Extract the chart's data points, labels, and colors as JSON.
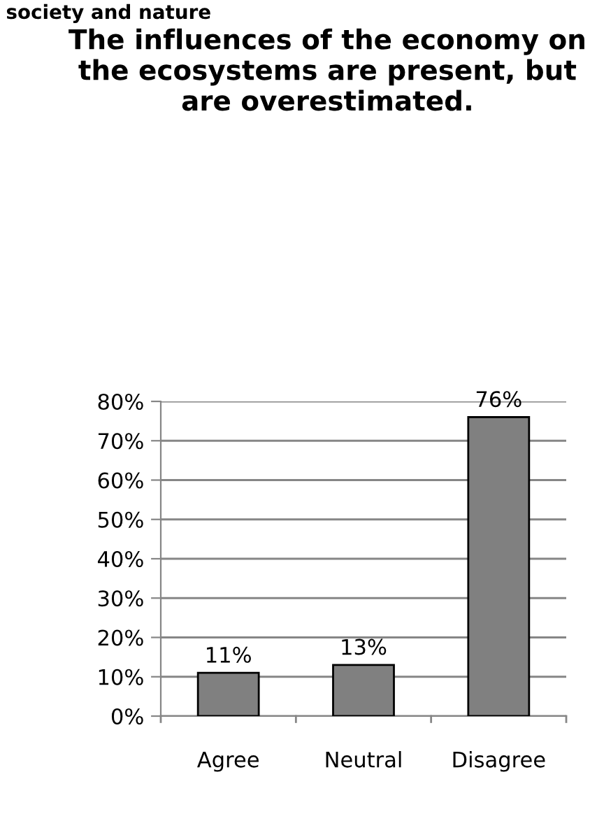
{
  "chart_data": {
    "type": "bar",
    "title": "The influences of the economy on the ecosystems are present, but are overestimated.",
    "annotations": [
      "society and nature"
    ],
    "categories": [
      "Agree",
      "Neutral",
      "Disagree"
    ],
    "values": [
      11,
      13,
      76
    ],
    "color": "#808080",
    "value_labels": [
      "11%",
      "13%",
      "76%"
    ],
    "ylim": [
      0,
      80
    ],
    "yticks": [
      {
        "value": 0,
        "label": "0%"
      },
      {
        "value": 10,
        "label": "10%"
      },
      {
        "value": 20,
        "label": "20%"
      },
      {
        "value": 30,
        "label": "30%"
      },
      {
        "value": 40,
        "label": "40%"
      },
      {
        "value": 50,
        "label": "50%"
      },
      {
        "value": 60,
        "label": "60%"
      },
      {
        "value": 70,
        "label": "70%"
      },
      {
        "value": 80,
        "label": "80%"
      }
    ],
    "grid": "y",
    "legend": false
  }
}
